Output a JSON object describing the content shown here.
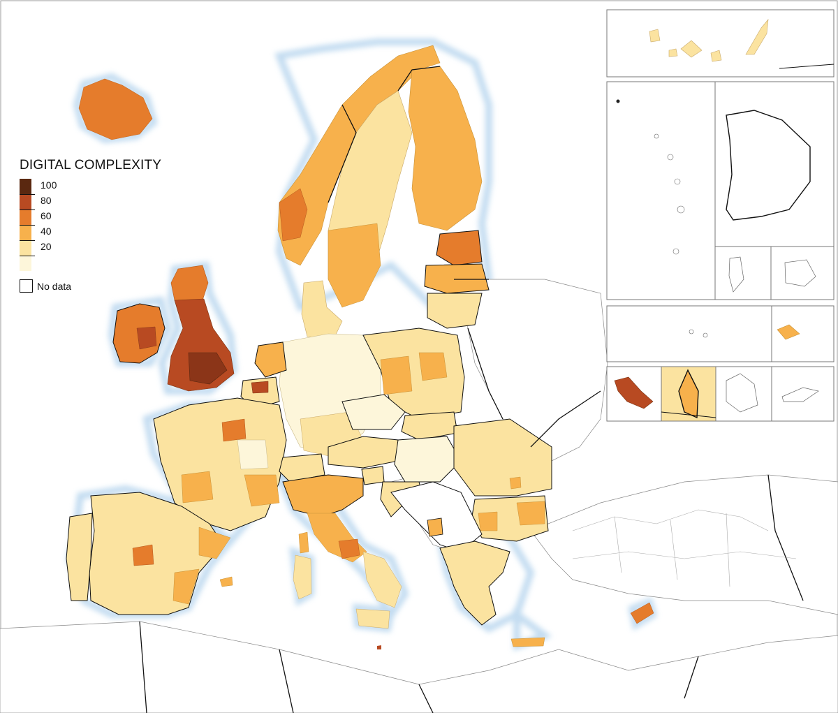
{
  "legend": {
    "title": "DIGITAL COMPLEXITY",
    "labels": [
      "100",
      "80",
      "60",
      "40",
      "20"
    ],
    "no_data_label": "No data",
    "colors": [
      "#5a2810",
      "#b84a22",
      "#e57c2c",
      "#f7b14c",
      "#fbe3a0",
      "#fdf6da"
    ]
  },
  "map": {
    "water_color": "#ffffff",
    "coast_glow_color": "#bcd8ef",
    "no_data_color": "#ffffff",
    "border_color": "#111111",
    "inset_panel_count": 9
  }
}
